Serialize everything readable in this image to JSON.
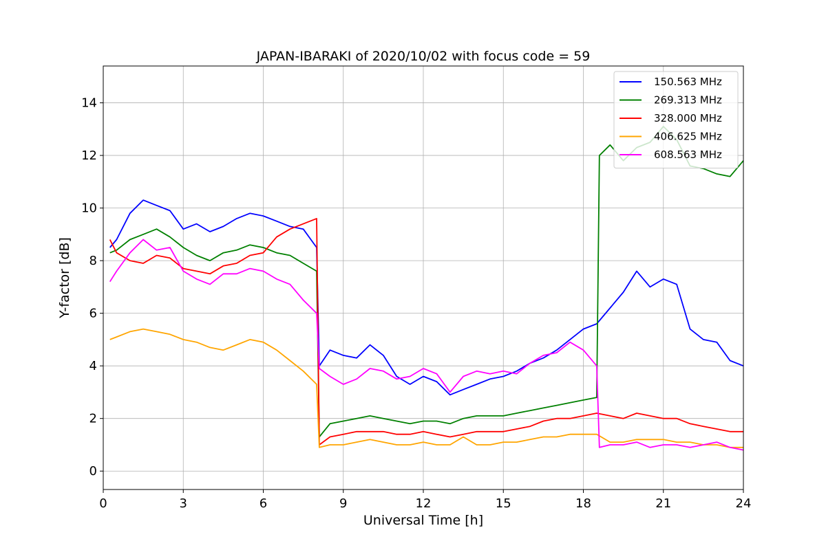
{
  "chart_data": {
    "type": "line",
    "title": "JAPAN-IBARAKI of 2020/10/02 with focus code = 59",
    "xlabel": "Universal Time [h]",
    "ylabel": "Y-factor [dB]",
    "xlim": [
      0,
      24
    ],
    "ylim": [
      -0.7,
      15.4
    ],
    "xticks": [
      0,
      3,
      6,
      9,
      12,
      15,
      18,
      21,
      24
    ],
    "yticks": [
      0,
      2,
      4,
      6,
      8,
      10,
      12,
      14
    ],
    "grid": true,
    "legend_position": "top-right",
    "series": [
      {
        "name": "150.563 MHz",
        "color": "#0000ff",
        "x": [
          0.25,
          0.5,
          1,
          1.5,
          2,
          2.5,
          3,
          3.5,
          4,
          4.5,
          5,
          5.5,
          6,
          6.5,
          7,
          7.5,
          8,
          8.1,
          8.5,
          9,
          9.5,
          10,
          10.5,
          11,
          11.5,
          12,
          12.5,
          13,
          13.5,
          14,
          14.5,
          15,
          15.5,
          16,
          16.5,
          17,
          17.5,
          18,
          18.5,
          19,
          19.5,
          20,
          20.5,
          21,
          21.5,
          22,
          22.5,
          23,
          23.5,
          24
        ],
        "y": [
          8.5,
          8.8,
          9.8,
          10.3,
          10.1,
          9.9,
          9.2,
          9.4,
          9.1,
          9.3,
          9.6,
          9.8,
          9.7,
          9.5,
          9.3,
          9.2,
          8.5,
          4.0,
          4.6,
          4.4,
          4.3,
          4.8,
          4.4,
          3.6,
          3.3,
          3.6,
          3.4,
          2.9,
          3.1,
          3.3,
          3.5,
          3.6,
          3.8,
          4.1,
          4.3,
          4.6,
          5.0,
          5.4,
          5.6,
          6.2,
          6.8,
          7.6,
          7.0,
          7.3,
          7.1,
          5.4,
          5.0,
          4.9,
          4.2,
          4.0
        ]
      },
      {
        "name": "269.313 MHz",
        "color": "#008000",
        "x": [
          0.25,
          0.5,
          1,
          1.5,
          2,
          2.5,
          3,
          3.5,
          4,
          4.5,
          5,
          5.5,
          6,
          6.5,
          7,
          7.5,
          8,
          8.1,
          8.5,
          9,
          9.5,
          10,
          10.5,
          11,
          11.5,
          12,
          12.5,
          13,
          13.5,
          14,
          14.5,
          15,
          15.5,
          16,
          16.5,
          17,
          17.5,
          18,
          18.5,
          18.6,
          19,
          19.5,
          20,
          20.5,
          21,
          21.5,
          22,
          22.5,
          23,
          23.5,
          24
        ],
        "y": [
          8.3,
          8.4,
          8.8,
          9.0,
          9.2,
          8.9,
          8.5,
          8.2,
          8.0,
          8.3,
          8.4,
          8.6,
          8.5,
          8.3,
          8.2,
          7.9,
          7.6,
          1.3,
          1.8,
          1.9,
          2.0,
          2.1,
          2.0,
          1.9,
          1.8,
          1.9,
          1.9,
          1.8,
          2.0,
          2.1,
          2.1,
          2.1,
          2.2,
          2.3,
          2.4,
          2.5,
          2.6,
          2.7,
          2.8,
          12.0,
          12.4,
          11.8,
          12.3,
          12.5,
          13.1,
          12.6,
          11.6,
          11.5,
          11.3,
          11.2,
          11.8
        ]
      },
      {
        "name": "328.000 MHz",
        "color": "#ff0000",
        "x": [
          0.25,
          0.5,
          1,
          1.5,
          2,
          2.5,
          3,
          3.5,
          4,
          4.5,
          5,
          5.5,
          6,
          6.5,
          7,
          7.5,
          8,
          8.1,
          8.5,
          9,
          9.5,
          10,
          10.5,
          11,
          11.5,
          12,
          12.5,
          13,
          13.5,
          14,
          14.5,
          15,
          15.5,
          16,
          16.5,
          17,
          17.5,
          18,
          18.5,
          19,
          19.5,
          20,
          20.5,
          21,
          21.5,
          22,
          22.5,
          23,
          23.5,
          24
        ],
        "y": [
          8.8,
          8.3,
          8.0,
          7.9,
          8.2,
          8.1,
          7.7,
          7.6,
          7.5,
          7.8,
          7.9,
          8.2,
          8.3,
          8.9,
          9.2,
          9.4,
          9.6,
          1.0,
          1.3,
          1.4,
          1.5,
          1.5,
          1.5,
          1.4,
          1.4,
          1.5,
          1.4,
          1.3,
          1.4,
          1.5,
          1.5,
          1.5,
          1.6,
          1.7,
          1.9,
          2.0,
          2.0,
          2.1,
          2.2,
          2.1,
          2.0,
          2.2,
          2.1,
          2.0,
          2.0,
          1.8,
          1.7,
          1.6,
          1.5,
          1.5
        ]
      },
      {
        "name": "406.625 MHz",
        "color": "#ffa500",
        "x": [
          0.25,
          0.5,
          1,
          1.5,
          2,
          2.5,
          3,
          3.5,
          4,
          4.5,
          5,
          5.5,
          6,
          6.5,
          7,
          7.5,
          8,
          8.1,
          8.5,
          9,
          9.5,
          10,
          10.5,
          11,
          11.5,
          12,
          12.5,
          13,
          13.5,
          14,
          14.5,
          15,
          15.5,
          16,
          16.5,
          17,
          17.5,
          18,
          18.5,
          19,
          19.5,
          20,
          20.5,
          21,
          21.5,
          22,
          22.5,
          23,
          23.5,
          24
        ],
        "y": [
          5.0,
          5.1,
          5.3,
          5.4,
          5.3,
          5.2,
          5.0,
          4.9,
          4.7,
          4.6,
          4.8,
          5.0,
          4.9,
          4.6,
          4.2,
          3.8,
          3.3,
          0.9,
          1.0,
          1.0,
          1.1,
          1.2,
          1.1,
          1.0,
          1.0,
          1.1,
          1.0,
          1.0,
          1.3,
          1.0,
          1.0,
          1.1,
          1.1,
          1.2,
          1.3,
          1.3,
          1.4,
          1.4,
          1.4,
          1.1,
          1.1,
          1.2,
          1.2,
          1.2,
          1.1,
          1.1,
          1.0,
          1.0,
          0.9,
          0.9
        ]
      },
      {
        "name": "608.563 MHz",
        "color": "#ff00ff",
        "x": [
          0.25,
          0.5,
          1,
          1.5,
          2,
          2.5,
          3,
          3.5,
          4,
          4.5,
          5,
          5.5,
          6,
          6.5,
          7,
          7.5,
          8,
          8.1,
          8.5,
          9,
          9.5,
          10,
          10.5,
          11,
          11.5,
          12,
          12.5,
          13,
          13.5,
          14,
          14.5,
          15,
          15.5,
          16,
          16.5,
          17,
          17.5,
          18,
          18.5,
          18.6,
          19,
          19.5,
          20,
          20.5,
          21,
          21.5,
          22,
          22.5,
          23,
          23.5,
          24
        ],
        "y": [
          7.2,
          7.6,
          8.3,
          8.8,
          8.4,
          8.5,
          7.6,
          7.3,
          7.1,
          7.5,
          7.5,
          7.7,
          7.6,
          7.3,
          7.1,
          6.5,
          6.0,
          3.9,
          3.6,
          3.3,
          3.5,
          3.9,
          3.8,
          3.5,
          3.6,
          3.9,
          3.7,
          3.0,
          3.6,
          3.8,
          3.7,
          3.8,
          3.7,
          4.1,
          4.4,
          4.5,
          4.9,
          4.6,
          4.0,
          0.9,
          1.0,
          1.0,
          1.1,
          0.9,
          1.0,
          1.0,
          0.9,
          1.0,
          1.1,
          0.9,
          0.8
        ]
      }
    ]
  }
}
